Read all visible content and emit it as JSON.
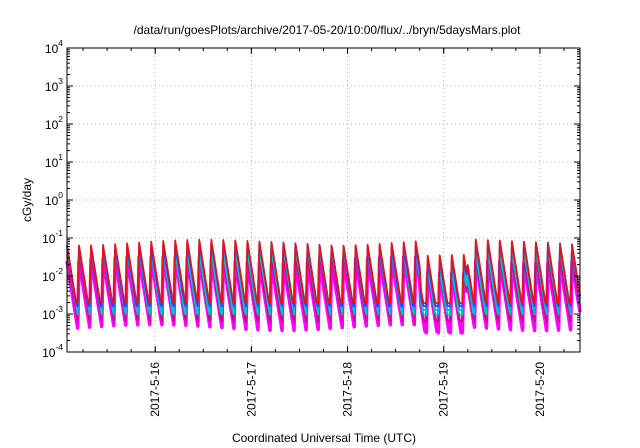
{
  "chart_data": {
    "type": "line",
    "title": "/data/run/goesPlots/archive/2017-05-20/10:00/flux/../bryn/5daysMars.plot",
    "xlabel": "Coordinated Universal Time (UTC)",
    "ylabel": "cGy/day",
    "y_scale": "log",
    "ylim": [
      0.0001,
      10000
    ],
    "xlim": [
      "2017-05-15 02:00",
      "2017-05-20 10:00"
    ],
    "grid": true,
    "x_ticks": [
      "2017-5-16",
      "2017-5-17",
      "2017-5-18",
      "2017-5-19",
      "2017-5-20"
    ],
    "y_ticks": [
      {
        "base": "10",
        "exp": "-4"
      },
      {
        "base": "10",
        "exp": "-3"
      },
      {
        "base": "10",
        "exp": "-2"
      },
      {
        "base": "10",
        "exp": "-1"
      },
      {
        "base": "10",
        "exp": "0"
      },
      {
        "base": "10",
        "exp": "1"
      },
      {
        "base": "10",
        "exp": "2"
      },
      {
        "base": "10",
        "exp": "3"
      },
      {
        "base": "10",
        "exp": "4"
      }
    ],
    "sawtooth_period_hours": 3,
    "series_colors": [
      "#ff00ff",
      "#c8008c",
      "#00c8a0",
      "#00b4ff",
      "#2846ff",
      "#e0141e"
    ],
    "approx_envelope": {
      "peak_top": 0.09,
      "trough_bottom": 0.0004
    }
  }
}
